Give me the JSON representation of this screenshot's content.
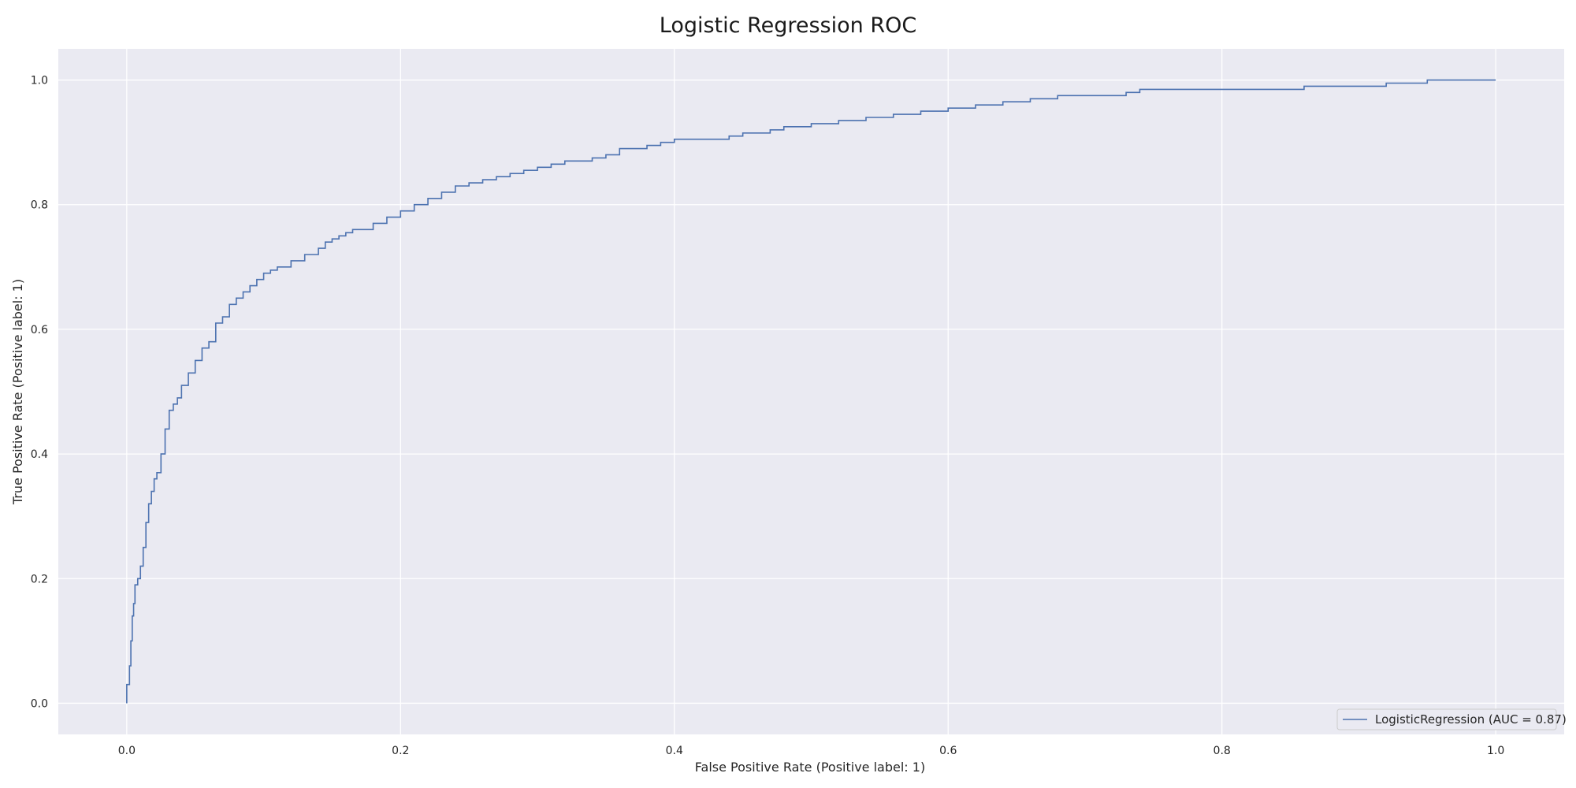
{
  "colors": {
    "figure_background": "#ffffff",
    "axes_background": "#eaeaf2",
    "grid": "#ffffff",
    "series_line": "#4c72b0",
    "legend_background": "#eaeaf2",
    "legend_border": "#cccccc"
  },
  "chart_data": {
    "type": "line",
    "title": "Logistic Regression ROC",
    "xlabel": "False Positive Rate (Positive label: 1)",
    "ylabel": "True Positive Rate (Positive label: 1)",
    "xlim": [
      -0.05,
      1.05
    ],
    "ylim": [
      -0.05,
      1.05
    ],
    "xticks": [
      "0.0",
      "0.2",
      "0.4",
      "0.6",
      "0.8",
      "1.0"
    ],
    "yticks": [
      "0.0",
      "0.2",
      "0.4",
      "0.6",
      "0.8",
      "1.0"
    ],
    "grid": true,
    "legend_position": "bottom-right",
    "series": [
      {
        "name": "LogisticRegression (AUC = 0.87)",
        "step": true,
        "x": [
          0.0,
          0.0,
          0.002,
          0.003,
          0.004,
          0.005,
          0.006,
          0.008,
          0.01,
          0.012,
          0.014,
          0.016,
          0.018,
          0.02,
          0.022,
          0.025,
          0.028,
          0.031,
          0.034,
          0.037,
          0.04,
          0.045,
          0.05,
          0.055,
          0.06,
          0.065,
          0.07,
          0.075,
          0.08,
          0.085,
          0.09,
          0.095,
          0.1,
          0.105,
          0.11,
          0.115,
          0.12,
          0.13,
          0.14,
          0.145,
          0.15,
          0.155,
          0.16,
          0.165,
          0.17,
          0.18,
          0.19,
          0.2,
          0.21,
          0.22,
          0.23,
          0.24,
          0.25,
          0.26,
          0.27,
          0.28,
          0.29,
          0.3,
          0.31,
          0.32,
          0.34,
          0.35,
          0.36,
          0.38,
          0.39,
          0.4,
          0.42,
          0.44,
          0.45,
          0.47,
          0.48,
          0.5,
          0.52,
          0.54,
          0.56,
          0.58,
          0.6,
          0.62,
          0.64,
          0.66,
          0.68,
          0.72,
          0.73,
          0.74,
          0.75,
          0.86,
          0.88,
          0.92,
          0.95,
          1.0
        ],
        "y": [
          0.0,
          0.03,
          0.06,
          0.1,
          0.14,
          0.16,
          0.19,
          0.2,
          0.22,
          0.25,
          0.29,
          0.32,
          0.34,
          0.36,
          0.37,
          0.4,
          0.44,
          0.47,
          0.48,
          0.49,
          0.51,
          0.53,
          0.55,
          0.57,
          0.58,
          0.61,
          0.62,
          0.64,
          0.65,
          0.66,
          0.67,
          0.68,
          0.69,
          0.695,
          0.7,
          0.7,
          0.71,
          0.72,
          0.73,
          0.74,
          0.745,
          0.75,
          0.755,
          0.76,
          0.76,
          0.77,
          0.78,
          0.79,
          0.8,
          0.81,
          0.82,
          0.83,
          0.835,
          0.84,
          0.845,
          0.85,
          0.855,
          0.86,
          0.865,
          0.87,
          0.875,
          0.88,
          0.89,
          0.895,
          0.9,
          0.905,
          0.905,
          0.91,
          0.915,
          0.92,
          0.925,
          0.93,
          0.935,
          0.94,
          0.945,
          0.95,
          0.955,
          0.96,
          0.965,
          0.97,
          0.975,
          0.975,
          0.98,
          0.985,
          0.985,
          0.99,
          0.99,
          0.995,
          1.0,
          1.0
        ]
      }
    ]
  }
}
